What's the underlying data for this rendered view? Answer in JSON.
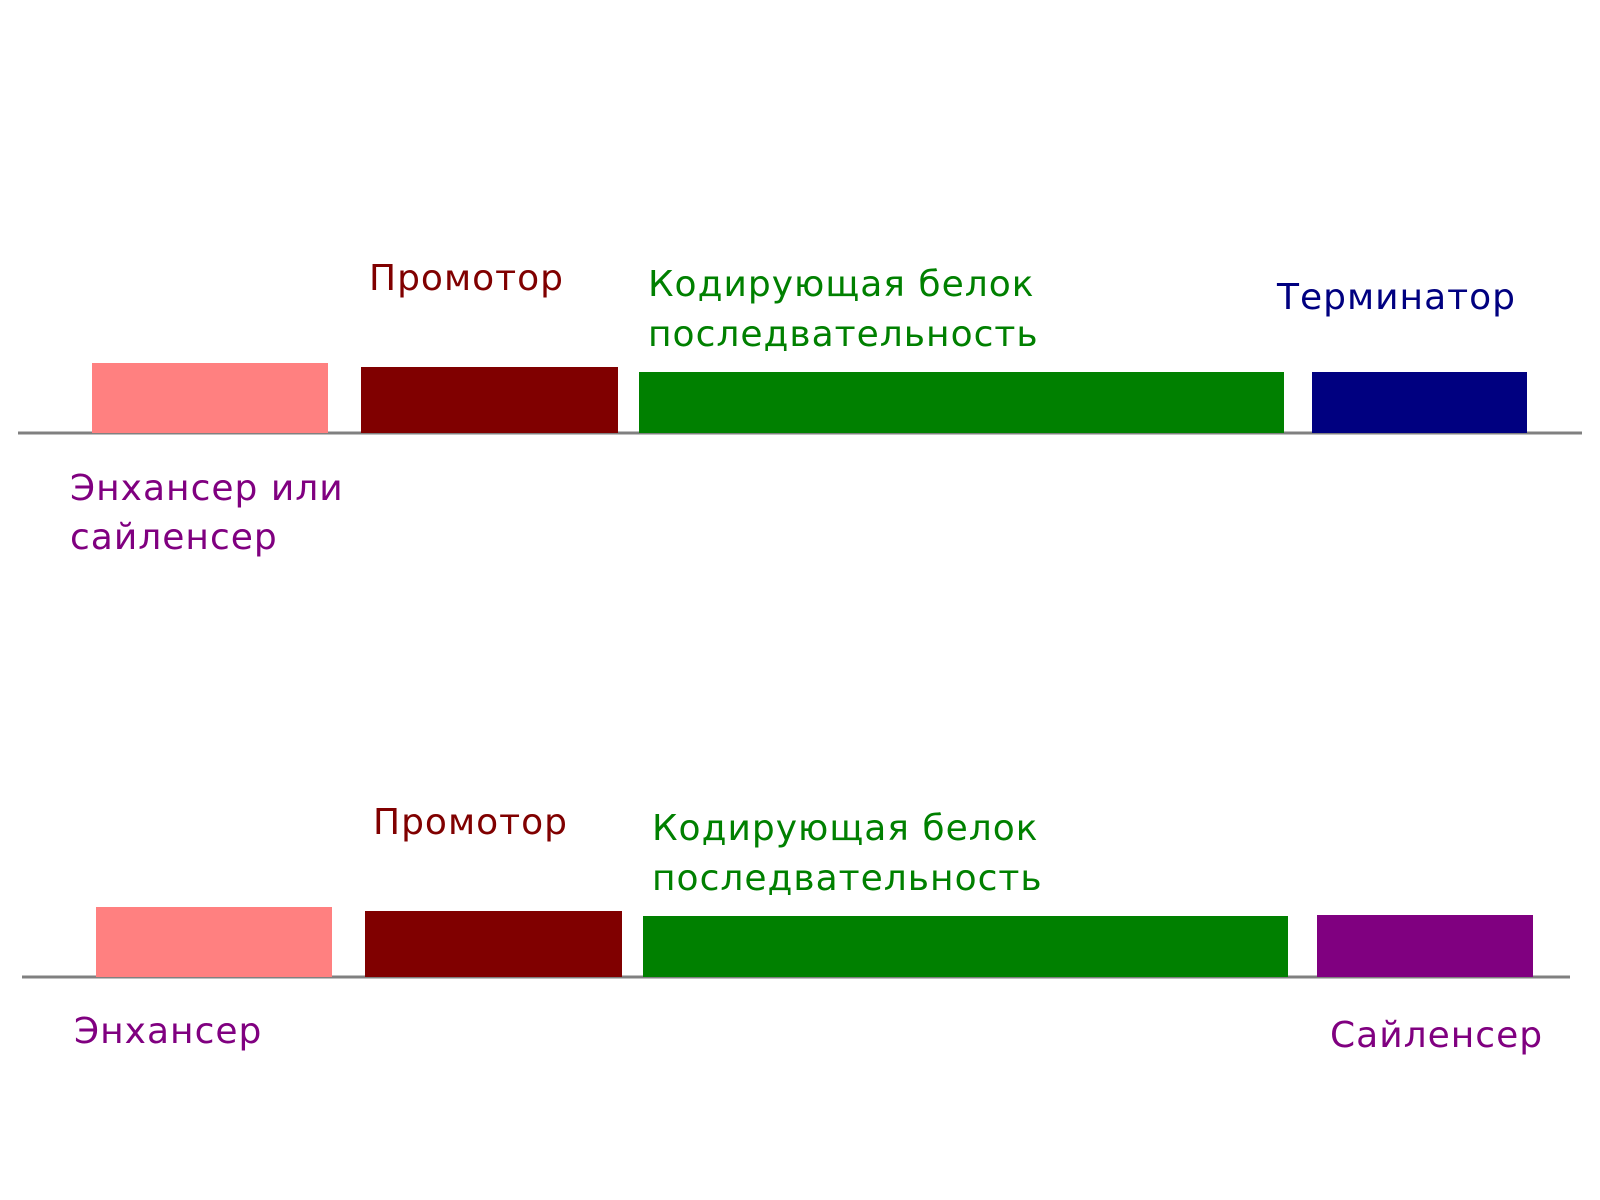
{
  "colors": {
    "enhancer": "#ff8080",
    "promoter": "#800000",
    "coding": "#008000",
    "terminator": "#000080",
    "silencer": "#800080",
    "label_enhancer": "#800080",
    "label_promoter": "#800000",
    "label_coding": "#008000",
    "label_terminator": "#000080",
    "label_silencer": "#800080",
    "dna_line": "#808080"
  },
  "top_diagram": {
    "promoter_label": "Промотор",
    "coding_label_line1": "Кодирующая белок",
    "coding_label_line2": "последвательность",
    "terminator_label": "Терминатор",
    "enhancer_label_line1": "Энхансер или",
    "enhancer_label_line2": "сайленсер"
  },
  "bottom_diagram": {
    "promoter_label": "Промотор",
    "coding_label_line1": "Кодирующая белок",
    "coding_label_line2": "последвательность",
    "enhancer_label": "Энхансер",
    "silencer_label": "Сайленсер"
  }
}
